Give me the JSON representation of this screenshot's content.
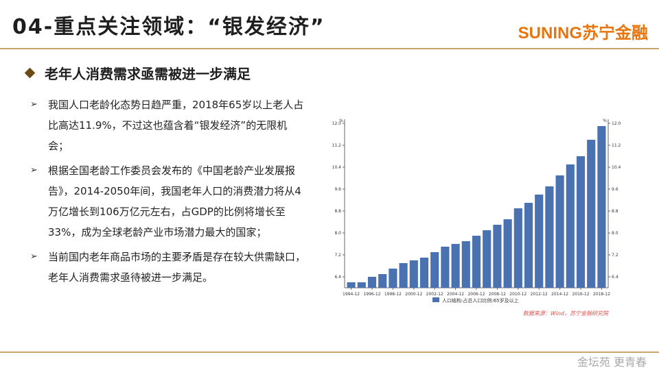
{
  "header": {
    "title": "04-重点关注领域：“银发经济”",
    "logo": "SUNING苏宁金融"
  },
  "section": {
    "subtitle": "老年人消费需求亟需被进一步满足"
  },
  "bullets": [
    "我国人口老龄化态势日趋严重，2018年65岁以上老人占比高达11.9%，不过这也蕴含着“银发经济”的无限机会；",
    "根据全国老龄工作委员会发布的《中国老龄产业发展报告》，2014-2050年间，我国老年人口的消费潜力将从4万亿增长到106万亿元左右，占GDP的比例将增长至33%，成为全球老龄产业市场潜力最大的国家；",
    "当前国内老年商品市场的主要矛盾是存在较大供需缺口，老年人消费需求亟待被进一步满足。"
  ],
  "footer": {
    "watermark": "金坛苑 更青春"
  },
  "chart_data": {
    "type": "bar",
    "categories": [
      "1994-12",
      "1995-12",
      "1996-12",
      "1997-12",
      "1998-12",
      "1999-12",
      "2000-12",
      "2001-12",
      "2002-12",
      "2003-12",
      "2004-12",
      "2005-12",
      "2006-12",
      "2007-12",
      "2008-12",
      "2009-12",
      "2010-12",
      "2011-12",
      "2012-12",
      "2013-12",
      "2014-12",
      "2015-12",
      "2016-12",
      "2017-12",
      "2018-12"
    ],
    "x_tick_labels": [
      "1994-12",
      "1996-12",
      "1998-12",
      "2000-12",
      "2002-12",
      "2004-12",
      "2006-12",
      "2008-12",
      "2010-12",
      "2012-12",
      "2014-12",
      "2016-12",
      "2018-12"
    ],
    "series": [
      {
        "name": "人口结构:占总人口比例:65岁及以上",
        "values": [
          6.2,
          6.2,
          6.4,
          6.5,
          6.7,
          6.9,
          7.0,
          7.1,
          7.3,
          7.5,
          7.6,
          7.7,
          7.9,
          8.1,
          8.3,
          8.5,
          8.9,
          9.1,
          9.4,
          9.7,
          10.1,
          10.5,
          10.8,
          11.4,
          11.9
        ],
        "color": "#4b72b0"
      }
    ],
    "ylim": [
      6.0,
      12.0
    ],
    "y_ticks": [
      "6.4",
      "7.2",
      "8.0",
      "8.8",
      "9.6",
      "10.4",
      "11.2",
      "12.0"
    ],
    "y_unit_left": "%",
    "y_unit_right": "%",
    "legend_position": "bottom",
    "source": "数据来源：Wind，苏宁金融研究院",
    "source_color": "#d9534f"
  }
}
